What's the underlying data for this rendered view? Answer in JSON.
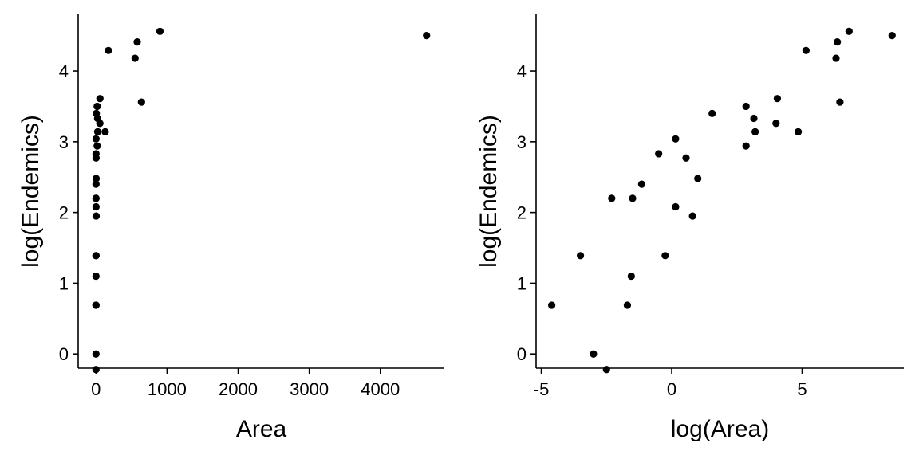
{
  "chart_data": [
    {
      "type": "scatter",
      "xlabel": "Area",
      "ylabel": "log(Endemics)",
      "xlim": [
        -250,
        4900
      ],
      "ylim": [
        -0.2,
        4.8
      ],
      "xticks": [
        0,
        1000,
        2000,
        3000,
        4000
      ],
      "yticks": [
        0,
        1,
        2,
        3,
        4
      ],
      "xtick_labels": [
        "0",
        "1000",
        "2000",
        "3000",
        "4000"
      ],
      "ytick_labels": [
        "0",
        "1",
        "2",
        "3",
        "4"
      ],
      "point_color": "#000000",
      "points": [
        {
          "x": 0.01,
          "y": 0.69
        },
        {
          "x": 0.03,
          "y": 1.39
        },
        {
          "x": 0.05,
          "y": 0.0
        },
        {
          "x": 0.08,
          "y": -0.22
        },
        {
          "x": 0.2,
          "y": 0.69
        },
        {
          "x": 0.22,
          "y": 1.1
        },
        {
          "x": 0.1,
          "y": 2.2
        },
        {
          "x": 0.3,
          "y": 2.4
        },
        {
          "x": 0.2,
          "y": 2.2
        },
        {
          "x": 0.6,
          "y": 2.83
        },
        {
          "x": 0.8,
          "y": 1.39
        },
        {
          "x": 1.2,
          "y": 2.08
        },
        {
          "x": 1.2,
          "y": 3.04
        },
        {
          "x": 1.8,
          "y": 2.77
        },
        {
          "x": 2.3,
          "y": 1.95
        },
        {
          "x": 2.8,
          "y": 2.48
        },
        {
          "x": 4.8,
          "y": 3.4
        },
        {
          "x": 17,
          "y": 3.5
        },
        {
          "x": 17,
          "y": 2.94
        },
        {
          "x": 23,
          "y": 3.33
        },
        {
          "x": 24,
          "y": 3.14
        },
        {
          "x": 55,
          "y": 3.26
        },
        {
          "x": 56,
          "y": 3.61
        },
        {
          "x": 130,
          "y": 3.14
        },
        {
          "x": 175,
          "y": 4.29
        },
        {
          "x": 550,
          "y": 4.18
        },
        {
          "x": 580,
          "y": 4.41
        },
        {
          "x": 640,
          "y": 3.56
        },
        {
          "x": 900,
          "y": 4.56
        },
        {
          "x": 4650,
          "y": 4.5
        }
      ]
    },
    {
      "type": "scatter",
      "xlabel": "log(Area)",
      "ylabel": "log(Endemics)",
      "xlim": [
        -5.2,
        8.9
      ],
      "ylim": [
        -0.2,
        4.8
      ],
      "xticks": [
        -5,
        0,
        5
      ],
      "yticks": [
        0,
        1,
        2,
        3,
        4
      ],
      "xtick_labels": [
        "-5",
        "0",
        "5"
      ],
      "ytick_labels": [
        "0",
        "1",
        "2",
        "3",
        "4"
      ],
      "point_color": "#000000",
      "points": [
        {
          "x": -4.6,
          "y": 0.69
        },
        {
          "x": -3.5,
          "y": 1.39
        },
        {
          "x": -3.0,
          "y": 0.0
        },
        {
          "x": -2.5,
          "y": -0.22
        },
        {
          "x": -1.7,
          "y": 0.69
        },
        {
          "x": -1.55,
          "y": 1.1
        },
        {
          "x": -2.3,
          "y": 2.2
        },
        {
          "x": -1.15,
          "y": 2.4
        },
        {
          "x": -1.5,
          "y": 2.2
        },
        {
          "x": -0.5,
          "y": 2.83
        },
        {
          "x": -0.25,
          "y": 1.39
        },
        {
          "x": 0.15,
          "y": 2.08
        },
        {
          "x": 0.15,
          "y": 3.04
        },
        {
          "x": 0.55,
          "y": 2.77
        },
        {
          "x": 0.8,
          "y": 1.95
        },
        {
          "x": 1.0,
          "y": 2.48
        },
        {
          "x": 1.55,
          "y": 3.4
        },
        {
          "x": 2.85,
          "y": 3.5
        },
        {
          "x": 2.85,
          "y": 2.94
        },
        {
          "x": 3.15,
          "y": 3.33
        },
        {
          "x": 3.2,
          "y": 3.14
        },
        {
          "x": 4.0,
          "y": 3.26
        },
        {
          "x": 4.05,
          "y": 3.61
        },
        {
          "x": 4.85,
          "y": 3.14
        },
        {
          "x": 5.15,
          "y": 4.29
        },
        {
          "x": 6.3,
          "y": 4.18
        },
        {
          "x": 6.35,
          "y": 4.41
        },
        {
          "x": 6.45,
          "y": 3.56
        },
        {
          "x": 6.8,
          "y": 4.56
        },
        {
          "x": 8.45,
          "y": 4.5
        }
      ]
    }
  ]
}
